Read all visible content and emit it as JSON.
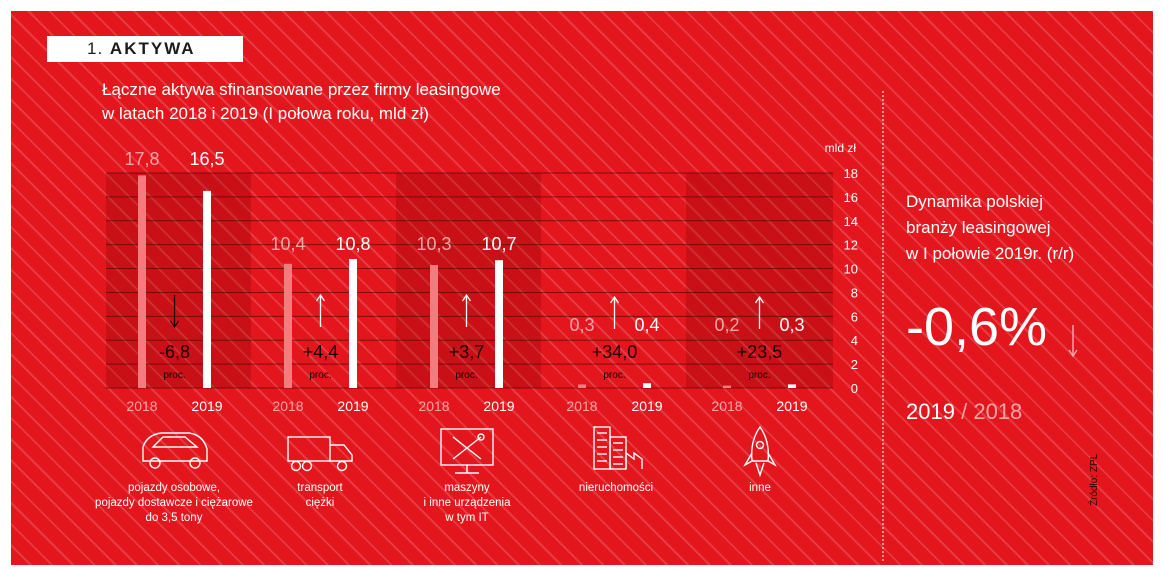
{
  "section": {
    "number": "1.",
    "label": "AKTYWA"
  },
  "title_lines": [
    "Łączne aktywa sfinansowane przez firmy leasingowe",
    "w latach 2018 i 2019 (I połowa roku, mld zł)"
  ],
  "chart_data": {
    "type": "bar",
    "title": "Łączne aktywa sfinansowane przez firmy leasingowe w latach 2018 i 2019 (I połowa roku, mld zł)",
    "ylabel": "mld zł",
    "ylim": [
      0,
      18
    ],
    "yticks": [
      "0",
      "2",
      "4",
      "6",
      "8",
      "10",
      "12",
      "14",
      "16",
      "18"
    ],
    "xlabels": [
      "2018",
      "2019"
    ],
    "categories": [
      "pojazdy osobowe, pojazdy dostawcze i ciężarowe do 3,5 tony",
      "transport ciężki",
      "maszyny i inne urządzenia w tym IT",
      "nieruchomości",
      "inne"
    ],
    "series": [
      {
        "name": "2018",
        "values": [
          17.8,
          10.4,
          10.3,
          0.3,
          0.2
        ]
      },
      {
        "name": "2019",
        "values": [
          16.5,
          10.8,
          10.7,
          0.4,
          0.3
        ]
      }
    ],
    "value_labels_2018": [
      "17,8",
      "10,4",
      "10,3",
      "0,3",
      "0,2"
    ],
    "value_labels_2019": [
      "16,5",
      "10,8",
      "10,7",
      "0,4",
      "0,3"
    ],
    "change": [
      "-6,8",
      "+4,4",
      "+3,7",
      "+34,0",
      "+23,5"
    ],
    "change_direction": [
      "down",
      "up",
      "up",
      "up",
      "up"
    ],
    "change_unit": "proc.",
    "colors": {
      "bar_2018": "#f47c7f",
      "bar_2019": "#ffffff",
      "background": "#e3151d"
    }
  },
  "icons": [
    {
      "icon": "car-icon",
      "caption_lines": [
        "pojazdy osobowe,",
        "pojazdy dostawcze i ciężarowe",
        "do 3,5 tony"
      ]
    },
    {
      "icon": "truck-icon",
      "caption_lines": [
        "transport",
        "ciężki"
      ]
    },
    {
      "icon": "machinery-icon",
      "caption_lines": [
        "maszyny",
        "i inne urządzenia",
        "w tym IT"
      ]
    },
    {
      "icon": "buildings-icon",
      "caption_lines": [
        "nieruchomości"
      ]
    },
    {
      "icon": "rocket-icon",
      "caption_lines": [
        "inne"
      ]
    }
  ],
  "dynamics": {
    "title_lines": [
      "Dynamika polskiej",
      "branży leasingowej",
      "w I połowie 2019r. (r/r)"
    ],
    "value": "-0,6%",
    "direction": "down",
    "year_current": "2019",
    "separator": "/",
    "year_base": "2018"
  },
  "source": "Źródło: ZPL"
}
